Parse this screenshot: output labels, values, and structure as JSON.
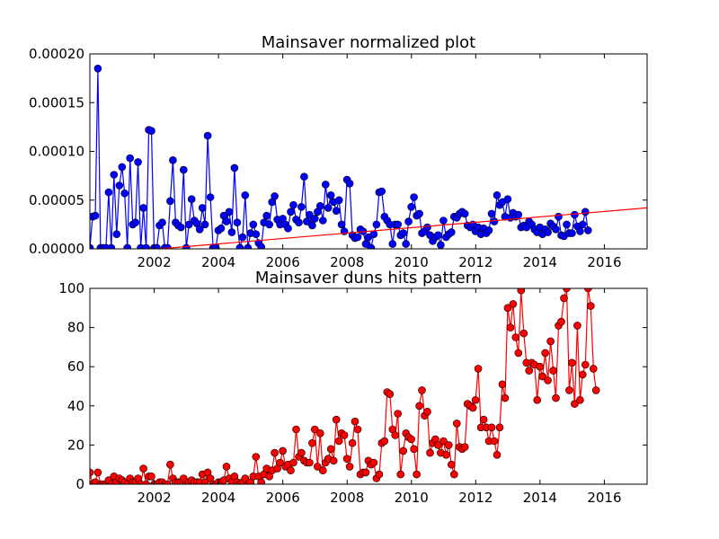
{
  "chart_data": [
    {
      "type": "line",
      "title": "Mainsaver normalized plot",
      "xlabel": "",
      "ylabel": "",
      "xlim": [
        2000.0,
        2017.33
      ],
      "ylim": [
        0,
        0.0002
      ],
      "x_ticks": [
        2002,
        2004,
        2006,
        2008,
        2010,
        2012,
        2014,
        2016
      ],
      "x_tick_labels": [
        "2002",
        "2004",
        "2006",
        "2008",
        "2010",
        "2012",
        "2014",
        "2016"
      ],
      "y_ticks": [
        0,
        5e-05,
        0.0001,
        0.00015,
        0.0002
      ],
      "y_tick_labels": [
        "0.00000",
        "0.00005",
        "0.00010",
        "0.00015",
        "0.00020"
      ],
      "grid": false,
      "series": [
        {
          "color": "#0000ff",
          "marker": "circle",
          "start": 2000.0,
          "step": 0.0833,
          "values": [
            1e-06,
            3.3e-05,
            3.4e-05,
            0.000185,
            1e-06,
            1e-06,
            1e-06,
            5.8e-05,
            1e-06,
            7.6e-05,
            1.5e-05,
            6.5e-05,
            8.4e-05,
            5.7e-05,
            1e-06,
            9.3e-05,
            2.5e-05,
            2.7e-05,
            8.9e-05,
            1e-06,
            4.2e-05,
            1e-06,
            0.000122,
            0.000121,
            1e-06,
            1e-06,
            2.4e-05,
            2.7e-05,
            1e-06,
            1e-06,
            4.9e-05,
            9.1e-05,
            2.7e-05,
            2.4e-05,
            2.2e-05,
            8.1e-05,
            1e-06,
            2.5e-05,
            5.1e-05,
            2.9e-05,
            2.6e-05,
            2e-05,
            4.2e-05,
            2.5e-05,
            0.000116,
            5.3e-05,
            1e-06,
            1e-06,
            1.9e-05,
            2.1e-05,
            3.4e-05,
            2.8e-05,
            3.8e-05,
            1.7e-05,
            8.3e-05,
            2.7e-05,
            1e-06,
            1.2e-05,
            5.5e-05,
            1e-06,
            1.6e-05,
            2.5e-05,
            1.5e-05,
            6e-06,
            2e-06,
            2.7e-05,
            3.4e-05,
            2.5e-05,
            4.8e-05,
            5.4e-05,
            3e-05,
            2.5e-05,
            3.1e-05,
            2.5e-05,
            2.1e-05,
            3.8e-05,
            4.5e-05,
            3e-05,
            2.7e-05,
            4.3e-05,
            7.4e-05,
            2.8e-05,
            3.5e-05,
            2.4e-05,
            3.1e-05,
            3.8e-05,
            4.4e-05,
            2.9e-05,
            6.6e-05,
            4.2e-05,
            5.5e-05,
            4.8e-05,
            3.9e-05,
            5e-05,
            2.5e-05,
            1.8e-05,
            7.1e-05,
            6.7e-05,
            1.4e-05,
            1.1e-05,
            1.2e-05,
            2e-05,
            1.8e-05,
            5e-06,
            1.2e-05,
            1e-06,
            1.5e-05,
            2.5e-05,
            5.8e-05,
            5.9e-05,
            3.3e-05,
            2.9e-05,
            2.5e-05,
            5e-06,
            2.5e-05,
            2.5e-05,
            1.4e-05,
            1.6e-05,
            5e-06,
            2.8e-05,
            4.3e-05,
            5.3e-05,
            3.4e-05,
            3.6e-05,
            1.6e-05,
            1.8e-05,
            2.2e-05,
            1.4e-05,
            8e-06,
            1.2e-05,
            1.4e-05,
            4e-06,
            2.9e-05,
            1.2e-05,
            1.5e-05,
            1.7e-05,
            3.3e-05,
            3.2e-05,
            3.6e-05,
            3.8e-05,
            3.6e-05,
            2.4e-05,
            2.2e-05,
            2.5e-05,
            1.8e-05,
            2.2e-05,
            1.5e-05,
            2.1e-05,
            1.6e-05,
            1.9e-05,
            3.6e-05,
            2.8e-05,
            5.5e-05,
            4.5e-05,
            4.8e-05,
            3.3e-05,
            5.1e-05,
            3.2e-05,
            3.7e-05,
            3.3e-05,
            3.5e-05,
            2.2e-05,
            2.4e-05,
            2.2e-05,
            2.8e-05,
            2.5e-05,
            2e-05,
            1.7e-05,
            2.2e-05,
            1.5e-05,
            2e-05,
            1.7e-05,
            2.6e-05,
            2.3e-05,
            2e-05,
            3.3e-05,
            1.4e-05,
            1.3e-05,
            2.5e-05,
            1.6e-05,
            1.6e-05,
            3.5e-05,
            2.3e-05,
            1.8e-05,
            2.5e-05,
            3.8e-05,
            1.9e-05
          ]
        },
        {
          "color": "#ff0000",
          "marker": "none",
          "x": [
            2000.0,
            2017.33
          ],
          "values": [
            -6e-06,
            4.2e-05
          ]
        }
      ]
    },
    {
      "type": "line",
      "title": "Mainsaver duns hits pattern",
      "xlabel": "",
      "ylabel": "",
      "xlim": [
        2000.0,
        2017.33
      ],
      "ylim": [
        0,
        100
      ],
      "x_ticks": [
        2002,
        2004,
        2006,
        2008,
        2010,
        2012,
        2014,
        2016
      ],
      "x_tick_labels": [
        "2002",
        "2004",
        "2006",
        "2008",
        "2010",
        "2012",
        "2014",
        "2016"
      ],
      "y_ticks": [
        0,
        20,
        40,
        60,
        80,
        100
      ],
      "y_tick_labels": [
        "0",
        "20",
        "40",
        "60",
        "80",
        "100"
      ],
      "grid": false,
      "series": [
        {
          "color": "#ff0000",
          "marker": "circle",
          "start": 2000.0,
          "step": 0.0833,
          "values": [
            6,
            0,
            1,
            6,
            0,
            0,
            0,
            2,
            0,
            4,
            1,
            3,
            2,
            1,
            0,
            3,
            1,
            1,
            3,
            0,
            8,
            0,
            4,
            4,
            0,
            0,
            1,
            1,
            0,
            0,
            10,
            3,
            1,
            1,
            1,
            3,
            0,
            1,
            2,
            1,
            1,
            1,
            5,
            1,
            6,
            3,
            0,
            0,
            1,
            1,
            2,
            9,
            3,
            1,
            4,
            1,
            0,
            1,
            3,
            0,
            1,
            4,
            14,
            4,
            1,
            5,
            8,
            4,
            7,
            16,
            8,
            11,
            17,
            9,
            10,
            7,
            11,
            28,
            14,
            16,
            12,
            11,
            11,
            21,
            28,
            9,
            26,
            7,
            11,
            13,
            18,
            12,
            33,
            22,
            26,
            25,
            13,
            9,
            21,
            32,
            28,
            5,
            6,
            6,
            12,
            10,
            11,
            3,
            5,
            21,
            22,
            47,
            46,
            28,
            25,
            36,
            5,
            17,
            26,
            24,
            23,
            18,
            5,
            40,
            48,
            35,
            37,
            16,
            21,
            23,
            20,
            16,
            22,
            15,
            20,
            10,
            5,
            31,
            19,
            18,
            19,
            41,
            40,
            39,
            43,
            59,
            29,
            33,
            29,
            22,
            29,
            22,
            15,
            29,
            51,
            44,
            90,
            80,
            92,
            75,
            67,
            99,
            77,
            62,
            58,
            62,
            61,
            43,
            60,
            55,
            67,
            53,
            73,
            58,
            44,
            81,
            83,
            95,
            100,
            48,
            62,
            41,
            81,
            43,
            56,
            61,
            100,
            91,
            59,
            48
          ]
        }
      ]
    }
  ]
}
